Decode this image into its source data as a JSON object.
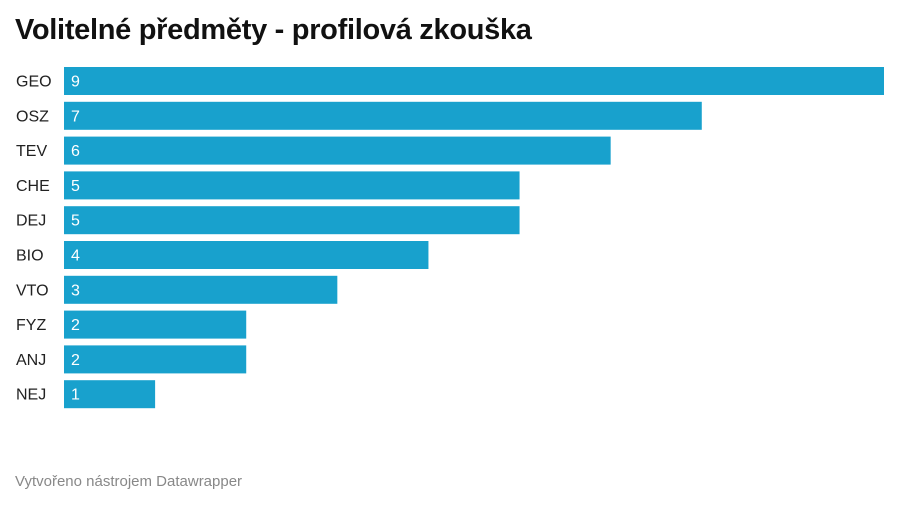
{
  "chart_data": {
    "type": "bar",
    "orientation": "horizontal",
    "title": "Volitelné předměty - profilová zkouška",
    "categories": [
      "GEO",
      "OSZ",
      "TEV",
      "CHE",
      "DEJ",
      "BIO",
      "VTO",
      "FYZ",
      "ANJ",
      "NEJ"
    ],
    "values": [
      9,
      7,
      6,
      5,
      5,
      4,
      3,
      2,
      2,
      1
    ],
    "xlim": [
      0,
      9
    ],
    "grid": false,
    "data_labels": "inside-left",
    "bar_color": "#18a1cd",
    "label_color": "#ffffff"
  },
  "footer": "Vytvořeno nástrojem Datawrapper"
}
